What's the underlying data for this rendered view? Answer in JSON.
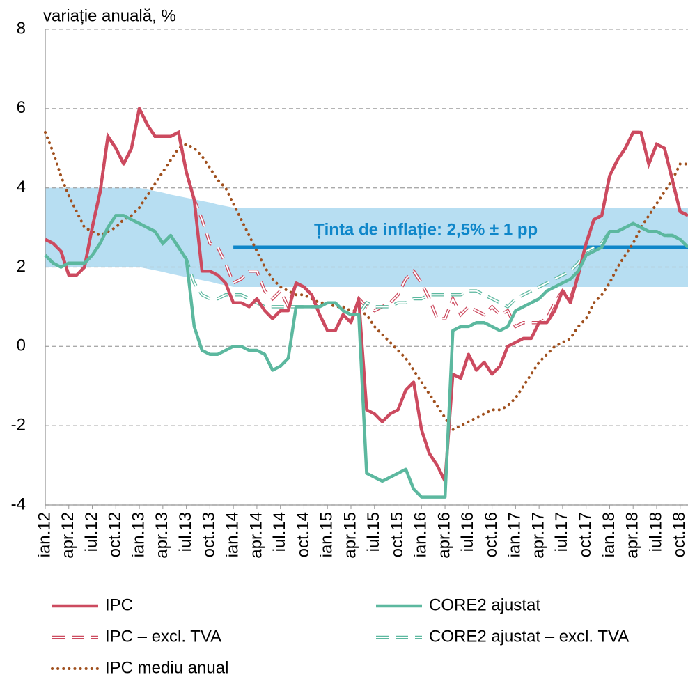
{
  "chart_data": {
    "type": "line",
    "title": "variație anuală, %",
    "categories": [
      "ian.12",
      null,
      null,
      "apr.12",
      null,
      null,
      "iul.12",
      null,
      null,
      "oct.12",
      null,
      null,
      "ian.13",
      null,
      null,
      "apr.13",
      null,
      null,
      "iul.13",
      null,
      null,
      "oct.13",
      null,
      null,
      "ian.14",
      null,
      null,
      "apr.14",
      null,
      null,
      "iul.14",
      null,
      null,
      "oct.14",
      null,
      null,
      "ian.15",
      null,
      null,
      "apr.15",
      null,
      null,
      "iul.15",
      null,
      null,
      "oct.15",
      null,
      null,
      "ian.16",
      null,
      null,
      "apr.16",
      null,
      null,
      "iul.16",
      null,
      null,
      "oct.16",
      null,
      null,
      "ian.17",
      null,
      null,
      "apr.17",
      null,
      null,
      "iul.17",
      null,
      null,
      "oct.17",
      null,
      null,
      "ian.18",
      null,
      null,
      "apr.18",
      null,
      null,
      "iul.18",
      null,
      null,
      "oct.18",
      null
    ],
    "ylim": [
      -4,
      8
    ],
    "yticks": [
      -4,
      -2,
      0,
      2,
      4,
      6,
      8
    ],
    "grid": true,
    "target_band": {
      "color": "#b7def2",
      "upper": [
        4,
        4,
        4,
        4,
        4,
        4,
        4,
        4,
        4,
        4,
        4,
        4,
        4,
        3.96,
        3.92,
        3.88,
        3.83,
        3.79,
        3.75,
        3.71,
        3.67,
        3.63,
        3.58,
        3.54,
        3.5,
        3.5,
        3.5,
        3.5,
        3.5,
        3.5,
        3.5,
        3.5,
        3.5,
        3.5,
        3.5,
        3.5,
        3.5,
        3.5,
        3.5,
        3.5,
        3.5,
        3.5,
        3.5,
        3.5,
        3.5,
        3.5,
        3.5,
        3.5,
        3.5,
        3.5,
        3.5,
        3.5,
        3.5,
        3.5,
        3.5,
        3.5,
        3.5,
        3.5,
        3.5,
        3.5,
        3.5,
        3.5,
        3.5,
        3.5,
        3.5,
        3.5,
        3.5,
        3.5,
        3.5,
        3.5,
        3.5,
        3.5,
        3.5,
        3.5,
        3.5,
        3.5,
        3.5,
        3.5,
        3.5,
        3.5,
        3.5,
        3.5,
        3.5
      ],
      "lower": [
        2,
        2,
        2,
        2,
        2,
        2,
        2,
        2,
        2,
        2,
        2,
        2,
        2,
        1.96,
        1.92,
        1.88,
        1.83,
        1.79,
        1.75,
        1.71,
        1.67,
        1.63,
        1.58,
        1.54,
        1.5,
        1.5,
        1.5,
        1.5,
        1.5,
        1.5,
        1.5,
        1.5,
        1.5,
        1.5,
        1.5,
        1.5,
        1.5,
        1.5,
        1.5,
        1.5,
        1.5,
        1.5,
        1.5,
        1.5,
        1.5,
        1.5,
        1.5,
        1.5,
        1.5,
        1.5,
        1.5,
        1.5,
        1.5,
        1.5,
        1.5,
        1.5,
        1.5,
        1.5,
        1.5,
        1.5,
        1.5,
        1.5,
        1.5,
        1.5,
        1.5,
        1.5,
        1.5,
        1.5,
        1.5,
        1.5,
        1.5,
        1.5,
        1.5,
        1.5,
        1.5,
        1.5,
        1.5,
        1.5,
        1.5,
        1.5,
        1.5,
        1.5,
        1.5
      ]
    },
    "target": {
      "label": "Ținta de inflație: 2,5% ± 1 pp",
      "color": "#0e86c9",
      "values": [
        null,
        null,
        null,
        null,
        null,
        null,
        null,
        null,
        null,
        null,
        null,
        null,
        null,
        null,
        null,
        null,
        null,
        null,
        null,
        null,
        null,
        null,
        null,
        null,
        2.5,
        2.5,
        2.5,
        2.5,
        2.5,
        2.5,
        2.5,
        2.5,
        2.5,
        2.5,
        2.5,
        2.5,
        2.5,
        2.5,
        2.5,
        2.5,
        2.5,
        2.5,
        2.5,
        2.5,
        2.5,
        2.5,
        2.5,
        2.5,
        2.5,
        2.5,
        2.5,
        2.5,
        2.5,
        2.5,
        2.5,
        2.5,
        2.5,
        2.5,
        2.5,
        2.5,
        2.5,
        2.5,
        2.5,
        2.5,
        2.5,
        2.5,
        2.5,
        2.5,
        2.5,
        2.5,
        2.5,
        2.5,
        2.5,
        2.5,
        2.5,
        2.5,
        2.5,
        2.5,
        2.5,
        2.5,
        2.5,
        2.5,
        2.5
      ]
    },
    "series": [
      {
        "name": "IPC",
        "color": "#cc4a5f",
        "style": "solid",
        "values": [
          2.7,
          2.6,
          2.4,
          1.8,
          1.8,
          2.0,
          3.0,
          3.9,
          5.3,
          5.0,
          4.6,
          5.0,
          6.0,
          5.6,
          5.3,
          5.3,
          5.3,
          5.4,
          4.4,
          3.7,
          1.9,
          1.9,
          1.8,
          1.6,
          1.1,
          1.1,
          1.0,
          1.2,
          0.9,
          0.7,
          0.9,
          0.9,
          1.6,
          1.5,
          1.3,
          0.8,
          0.4,
          0.4,
          0.8,
          0.6,
          1.2,
          -1.6,
          -1.7,
          -1.9,
          -1.7,
          -1.6,
          -1.1,
          -0.9,
          -2.1,
          -2.7,
          -3.0,
          -3.4,
          -0.7,
          -0.8,
          -0.2,
          -0.6,
          -0.4,
          -0.7,
          -0.5,
          0.0,
          0.1,
          0.2,
          0.2,
          0.6,
          0.6,
          0.9,
          1.4,
          1.1,
          1.8,
          2.6,
          3.2,
          3.3,
          4.3,
          4.7,
          5.0,
          5.4,
          5.4,
          4.6,
          5.1,
          5.0,
          4.2,
          3.4,
          3.3
        ]
      },
      {
        "name": "CORE2 ajustat",
        "color": "#5cb89f",
        "style": "solid",
        "values": [
          2.3,
          2.1,
          2.0,
          2.1,
          2.1,
          2.1,
          2.3,
          2.6,
          3.0,
          3.3,
          3.3,
          3.2,
          3.1,
          3.0,
          2.9,
          2.6,
          2.8,
          2.5,
          2.2,
          0.5,
          -0.1,
          -0.2,
          -0.2,
          -0.1,
          0.0,
          0.0,
          -0.1,
          -0.1,
          -0.2,
          -0.6,
          -0.5,
          -0.3,
          1.0,
          1.0,
          1.0,
          1.0,
          1.1,
          1.1,
          0.9,
          0.8,
          0.8,
          -3.2,
          -3.3,
          -3.4,
          -3.3,
          -3.2,
          -3.1,
          -3.6,
          -3.8,
          -3.8,
          -3.8,
          -3.8,
          0.4,
          0.5,
          0.5,
          0.6,
          0.6,
          0.5,
          0.4,
          0.5,
          0.9,
          1.0,
          1.1,
          1.2,
          1.4,
          1.5,
          1.6,
          1.7,
          1.9,
          2.3,
          2.4,
          2.5,
          2.9,
          2.9,
          3.0,
          3.1,
          3.0,
          2.9,
          2.9,
          2.8,
          2.8,
          2.7,
          2.5
        ]
      },
      {
        "name": "IPC – excl. TVA",
        "color": "#cc4a5f",
        "style": "dashed",
        "values": [
          2.7,
          2.6,
          2.4,
          1.8,
          1.8,
          2.0,
          3.0,
          3.9,
          5.3,
          5.0,
          4.6,
          5.0,
          6.0,
          5.6,
          5.3,
          5.3,
          5.3,
          5.4,
          4.4,
          3.7,
          3.2,
          2.6,
          2.5,
          2.1,
          1.6,
          1.7,
          1.9,
          1.9,
          1.4,
          1.2,
          1.4,
          1.0,
          1.6,
          1.5,
          1.3,
          0.8,
          0.4,
          0.4,
          0.8,
          0.6,
          1.2,
          1.0,
          0.9,
          1.0,
          1.1,
          1.3,
          1.7,
          1.9,
          1.6,
          1.2,
          0.7,
          0.7,
          1.2,
          0.8,
          1.0,
          0.9,
          0.8,
          1.0,
          0.8,
          0.9,
          0.5,
          0.6,
          0.6,
          0.6,
          0.7,
          1.1,
          1.4,
          1.2,
          1.8,
          2.6,
          3.2,
          3.3,
          4.3,
          4.7,
          5.0,
          5.4,
          5.4,
          4.6,
          5.1,
          5.0,
          4.2,
          3.4,
          3.3
        ]
      },
      {
        "name": "CORE2 ajustat – excl. TVA",
        "color": "#5cb89f",
        "style": "dashed",
        "values": [
          2.3,
          2.1,
          2.0,
          2.1,
          2.1,
          2.1,
          2.3,
          2.6,
          3.0,
          3.3,
          3.3,
          3.2,
          3.1,
          3.0,
          2.9,
          2.6,
          2.8,
          2.5,
          2.2,
          1.6,
          1.3,
          1.2,
          1.2,
          1.3,
          1.3,
          1.3,
          1.2,
          1.1,
          1.0,
          1.0,
          1.0,
          1.0,
          1.0,
          1.0,
          1.0,
          1.0,
          1.1,
          1.1,
          0.9,
          0.8,
          0.8,
          1.1,
          1.0,
          1.0,
          1.0,
          1.1,
          1.1,
          1.2,
          1.2,
          1.3,
          1.3,
          1.3,
          1.3,
          1.3,
          1.4,
          1.4,
          1.3,
          1.2,
          1.1,
          1.0,
          1.2,
          1.3,
          1.4,
          1.5,
          1.6,
          1.7,
          1.8,
          1.9,
          2.1,
          2.4,
          2.5,
          2.6,
          2.9,
          2.9,
          3.0,
          3.1,
          3.0,
          2.9,
          2.9,
          2.8,
          2.8,
          2.7,
          2.5
        ]
      },
      {
        "name": "IPC mediu anual",
        "color": "#a0501e",
        "style": "dotted",
        "values": [
          5.4,
          4.9,
          4.3,
          3.8,
          3.4,
          3.0,
          2.9,
          2.8,
          2.9,
          3.0,
          3.2,
          3.3,
          3.5,
          3.8,
          4.1,
          4.4,
          4.7,
          5.0,
          5.1,
          5.0,
          4.8,
          4.5,
          4.2,
          4.0,
          3.6,
          3.2,
          2.8,
          2.4,
          2.0,
          1.7,
          1.5,
          1.4,
          1.3,
          1.3,
          1.2,
          1.1,
          1.1,
          1.0,
          1.0,
          0.9,
          0.9,
          0.8,
          0.5,
          0.3,
          0.1,
          -0.1,
          -0.3,
          -0.6,
          -0.9,
          -1.2,
          -1.5,
          -1.8,
          -2.1,
          -2.0,
          -1.9,
          -1.8,
          -1.7,
          -1.6,
          -1.6,
          -1.5,
          -1.3,
          -1.0,
          -0.7,
          -0.4,
          -0.2,
          0.0,
          0.1,
          0.2,
          0.5,
          0.7,
          1.1,
          1.3,
          1.6,
          2.0,
          2.3,
          2.6,
          3.0,
          3.3,
          3.6,
          3.9,
          4.2,
          4.6,
          4.6
        ]
      }
    ]
  }
}
